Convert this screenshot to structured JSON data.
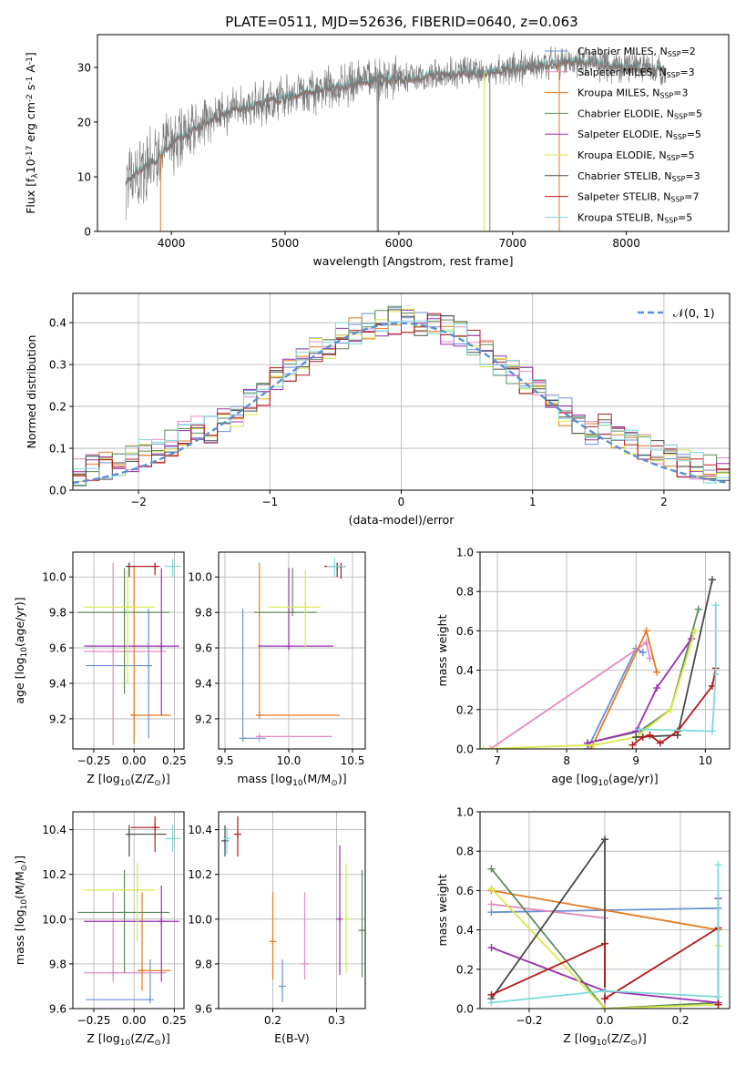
{
  "title": "PLATE=0511, MJD=52636, FIBERID=0640, z=0.063",
  "colors": {
    "Chabrier MILES": "#6b8fd6",
    "Salpeter MILES": "#e38ac0",
    "Kroupa MILES": "#e37b20",
    "Chabrier ELODIE": "#5e8c5e",
    "Salpeter ELODIE": "#9a2fb0",
    "Kroupa ELODIE": "#d9e84a",
    "Chabrier STELIB": "#4a4a4a",
    "Salpeter STELIB": "#b51a1a",
    "Kroupa STELIB": "#7dd9dd",
    "normal": "#5b8fd6",
    "spectrum": "#7a7a7a"
  },
  "chart_data": [
    {
      "id": "spectrum",
      "type": "line",
      "title": "PLATE=0511, MJD=52636, FIBERID=0640, z=0.063",
      "xlabel": "wavelength [Angstrom, rest frame]",
      "ylabel": "Flux [f$_\\lambda$10$^{-17}$ erg cm$^{-2}$ s$^{-1}$ A$^{-1}$]",
      "xlim": [
        3350,
        8900
      ],
      "ylim": [
        0,
        36
      ],
      "xticks": [
        4000,
        5000,
        6000,
        7000,
        8000
      ],
      "yticks": [
        0,
        10,
        20,
        30
      ],
      "legend_position": "top-right",
      "continuum_x": [
        3600,
        3700,
        3800,
        3900,
        4000,
        4100,
        4200,
        4300,
        4500,
        4700,
        4900,
        5100,
        5300,
        5500,
        5700,
        5900,
        6100,
        6300,
        6500,
        6700,
        6900,
        7100,
        7300,
        7500,
        7700,
        7900,
        8100,
        8300,
        8500,
        8700
      ],
      "continuum_y": [
        9,
        11,
        12,
        14,
        16,
        17.5,
        18.5,
        20,
        22,
        23,
        24,
        25,
        26,
        26.5,
        27.5,
        28,
        28,
        28.5,
        29,
        29,
        29.5,
        30,
        30.5,
        31,
        31,
        30,
        30,
        29.5,
        30,
        30
      ],
      "legend": [
        {
          "name": "Chabrier MILES",
          "label": "Chabrier MILES, N",
          "nssp": "=2"
        },
        {
          "name": "Salpeter MILES",
          "label": "Salpeter MILES, N",
          "nssp": "=3"
        },
        {
          "name": "Kroupa MILES",
          "label": "Kroupa MILES, N",
          "nssp": "=3"
        },
        {
          "name": "Chabrier ELODIE",
          "label": "Chabrier ELODIE, N",
          "nssp": "=5"
        },
        {
          "name": "Salpeter ELODIE",
          "label": "Salpeter ELODIE, N",
          "nssp": "=5"
        },
        {
          "name": "Kroupa ELODIE",
          "label": "Kroupa ELODIE, N",
          "nssp": "=5"
        },
        {
          "name": "Chabrier STELIB",
          "label": "Chabrier STELIB, N",
          "nssp": "=3"
        },
        {
          "name": "Salpeter STELIB",
          "label": "Salpeter STELIB, N",
          "nssp": "=7"
        },
        {
          "name": "Kroupa STELIB",
          "label": "Kroupa STELIB, N",
          "nssp": "=5"
        }
      ],
      "legend_subscript": "SSP"
    },
    {
      "id": "residuals",
      "type": "histogram",
      "xlabel": "(data-model)/error",
      "ylabel": "Normed distribution",
      "xlim": [
        -2.5,
        2.5
      ],
      "ylim": [
        0,
        0.47
      ],
      "xticks": [
        -2,
        -1,
        0,
        1,
        2
      ],
      "yticks": [
        0.0,
        0.1,
        0.2,
        0.3,
        0.4
      ],
      "grid": true,
      "legend_position": "top-right",
      "legend": [
        {
          "name": "normal",
          "label": "𝒩(0, 1)"
        }
      ],
      "bin_width": 0.1
    },
    {
      "id": "Z_age",
      "type": "errorbar",
      "xlabel": "Z [log$_{10}$(Z/Z$_\\odot$)]",
      "ylabel": "age  [log$_{10}$(age/yr)]",
      "xlim": [
        -0.38,
        0.31
      ],
      "ylim": [
        9.03,
        10.14
      ],
      "xticks": [
        -0.25,
        0.0,
        0.25
      ],
      "xticklabels": [
        "−0.25",
        "0.00",
        "0.25"
      ],
      "yticks": [
        9.2,
        9.4,
        9.6,
        9.8,
        10.0
      ],
      "grid": true,
      "points": [
        {
          "model": "Chabrier MILES",
          "x": 0.09,
          "y": 9.5,
          "xl": -0.3,
          "xr": 0.1,
          "yl": 9.09,
          "yh": 9.82
        },
        {
          "model": "Salpeter MILES",
          "x": -0.13,
          "y": 9.58,
          "xl": -0.31,
          "xr": 0.2,
          "yl": 9.05,
          "yh": 10.08
        },
        {
          "model": "Kroupa MILES",
          "x": 0.0,
          "y": 9.22,
          "xl": -0.02,
          "xr": 0.23,
          "yl": 9.06,
          "yh": 10.06
        },
        {
          "model": "Chabrier ELODIE",
          "x": -0.06,
          "y": 9.8,
          "xl": -0.35,
          "xr": 0.22,
          "yl": 9.34,
          "yh": 10.05
        },
        {
          "model": "Salpeter ELODIE",
          "x": 0.17,
          "y": 9.61,
          "xl": -0.31,
          "xr": 0.28,
          "yl": 9.22,
          "yh": 10.05
        },
        {
          "model": "Kroupa ELODIE",
          "x": -0.04,
          "y": 9.83,
          "xl": -0.31,
          "xr": 0.13,
          "yl": 9.4,
          "yh": 10.04
        },
        {
          "model": "Chabrier STELIB",
          "x": -0.03,
          "y": 10.06,
          "xl": -0.05,
          "xr": 0.15,
          "yl": 10.0,
          "yh": 10.08
        },
        {
          "model": "Salpeter STELIB",
          "x": 0.13,
          "y": 10.06,
          "xl": -0.04,
          "xr": 0.16,
          "yl": 10.01,
          "yh": 10.07
        },
        {
          "model": "Kroupa STELIB",
          "x": 0.24,
          "y": 10.06,
          "xl": 0.19,
          "xr": 0.29,
          "yl": 10.0,
          "yh": 10.1
        }
      ]
    },
    {
      "id": "mass_age",
      "type": "errorbar",
      "xlabel": "mass [log$_{10}$(M/M$_\\odot$)]",
      "ylabel": "",
      "xlim": [
        9.45,
        10.6
      ],
      "ylim": [
        9.03,
        10.14
      ],
      "xticks": [
        9.5,
        10.0,
        10.5
      ],
      "yticks": [
        9.2,
        9.4,
        9.6,
        9.8,
        10.0
      ],
      "grid": true,
      "points": [
        {
          "model": "Chabrier MILES",
          "x": 9.64,
          "y": 9.09,
          "xl": 9.64,
          "xr": 9.82,
          "yl": 9.09,
          "yh": 9.82
        },
        {
          "model": "Salpeter MILES",
          "x": 9.77,
          "y": 9.1,
          "xl": 9.77,
          "xr": 10.34,
          "yl": 9.07,
          "yh": 9.1
        },
        {
          "model": "Kroupa MILES",
          "x": 9.77,
          "y": 9.22,
          "xl": 9.77,
          "xr": 10.4,
          "yl": 9.22,
          "yh": 10.08
        },
        {
          "model": "Chabrier ELODIE",
          "x": 10.03,
          "y": 9.8,
          "xl": 9.73,
          "xr": 10.22,
          "yl": 9.8,
          "yh": 10.05
        },
        {
          "model": "Salpeter ELODIE",
          "x": 10.0,
          "y": 9.61,
          "xl": 9.76,
          "xr": 10.35,
          "yl": 9.6,
          "yh": 10.05
        },
        {
          "model": "Kroupa ELODIE",
          "x": 10.13,
          "y": 9.83,
          "xl": 9.84,
          "xr": 10.25,
          "yl": 9.6,
          "yh": 10.04
        },
        {
          "model": "Chabrier STELIB",
          "x": 10.38,
          "y": 10.06,
          "xl": 10.28,
          "xr": 10.45,
          "yl": 10.0,
          "yh": 10.08
        },
        {
          "model": "Salpeter STELIB",
          "x": 10.41,
          "y": 10.06,
          "xl": 10.28,
          "xr": 10.45,
          "yl": 9.99,
          "yh": 10.07
        },
        {
          "model": "Kroupa STELIB",
          "x": 10.36,
          "y": 10.06,
          "xl": 10.3,
          "xr": 10.45,
          "yl": 10.0,
          "yh": 10.11
        }
      ]
    },
    {
      "id": "age_weight",
      "type": "line",
      "xlabel": "age  [log$_{10}$(age/yr)]",
      "ylabel": "mass weight",
      "xlim": [
        6.75,
        10.35
      ],
      "ylim": [
        0.0,
        1.0
      ],
      "xticks": [
        7,
        8,
        9,
        10
      ],
      "yticks": [
        0.0,
        0.2,
        0.4,
        0.6,
        0.8,
        1.0
      ],
      "grid": true,
      "series": [
        {
          "name": "Chabrier MILES",
          "x": [
            8.3,
            9.0,
            9.1
          ],
          "y": [
            0.0,
            0.51,
            0.49
          ]
        },
        {
          "name": "Salpeter MILES",
          "x": [
            6.9,
            9.15,
            9.2
          ],
          "y": [
            0.0,
            0.54,
            0.46
          ]
        },
        {
          "name": "Kroupa MILES",
          "x": [
            8.35,
            9.15,
            9.3
          ],
          "y": [
            0.0,
            0.6,
            0.39
          ]
        },
        {
          "name": "Chabrier ELODIE",
          "x": [
            8.3,
            9.05,
            9.5,
            9.9
          ],
          "y": [
            0.03,
            0.09,
            0.2,
            0.71
          ]
        },
        {
          "name": "Salpeter ELODIE",
          "x": [
            8.3,
            9.0,
            9.3,
            9.8
          ],
          "y": [
            0.03,
            0.09,
            0.31,
            0.56
          ]
        },
        {
          "name": "Kroupa ELODIE",
          "x": [
            6.8,
            8.4,
            9.0,
            9.5,
            9.85
          ],
          "y": [
            0.0,
            0.02,
            0.06,
            0.2,
            0.6
          ]
        },
        {
          "name": "Chabrier STELIB",
          "x": [
            9.0,
            9.6,
            10.1
          ],
          "y": [
            0.06,
            0.07,
            0.86
          ]
        },
        {
          "name": "Salpeter STELIB",
          "x": [
            8.95,
            9.1,
            9.2,
            9.35,
            9.6,
            10.1,
            10.15
          ],
          "y": [
            0.02,
            0.06,
            0.07,
            0.03,
            0.09,
            0.32,
            0.41
          ]
        },
        {
          "name": "Kroupa STELIB",
          "x": [
            9.05,
            10.1,
            10.15,
            10.15
          ],
          "y": [
            0.1,
            0.09,
            0.38,
            0.73
          ]
        }
      ]
    },
    {
      "id": "Z_mass",
      "type": "errorbar",
      "xlabel": "Z [log$_{10}$(Z/Z$_\\odot$)]",
      "ylabel": "mass [log$_{10}$(M/M$_\\odot$)]",
      "xlim": [
        -0.38,
        0.31
      ],
      "ylim": [
        9.6,
        10.48
      ],
      "xticks": [
        -0.25,
        0.0,
        0.25
      ],
      "xticklabels": [
        "−0.25",
        "0.00",
        "0.25"
      ],
      "yticks": [
        9.6,
        9.8,
        10.0,
        10.2,
        10.4
      ],
      "grid": true,
      "points": [
        {
          "model": "Chabrier MILES",
          "x": 0.1,
          "y": 9.64,
          "xl": -0.3,
          "xr": 0.1,
          "yl": 9.64,
          "yh": 9.82
        },
        {
          "model": "Salpeter MILES",
          "x": -0.13,
          "y": 9.76,
          "xl": -0.31,
          "xr": 0.2,
          "yl": 9.72,
          "yh": 10.12
        },
        {
          "model": "Kroupa MILES",
          "x": 0.05,
          "y": 9.77,
          "xl": 0.02,
          "xr": 0.23,
          "yl": 9.68,
          "yh": 10.12
        },
        {
          "model": "Chabrier ELODIE",
          "x": -0.06,
          "y": 10.03,
          "xl": -0.35,
          "xr": 0.22,
          "yl": 9.76,
          "yh": 10.22
        },
        {
          "model": "Salpeter ELODIE",
          "x": 0.17,
          "y": 9.99,
          "xl": -0.31,
          "xr": 0.28,
          "yl": 9.72,
          "yh": 10.15
        },
        {
          "model": "Kroupa ELODIE",
          "x": 0.02,
          "y": 10.13,
          "xl": -0.31,
          "xr": 0.13,
          "yl": 9.9,
          "yh": 10.25
        },
        {
          "model": "Chabrier STELIB",
          "x": -0.03,
          "y": 10.38,
          "xl": -0.05,
          "xr": 0.2,
          "yl": 10.28,
          "yh": 10.42
        },
        {
          "model": "Salpeter STELIB",
          "x": 0.13,
          "y": 10.41,
          "xl": -0.02,
          "xr": 0.16,
          "yl": 10.3,
          "yh": 10.46
        },
        {
          "model": "Kroupa STELIB",
          "x": 0.24,
          "y": 10.36,
          "xl": 0.19,
          "xr": 0.29,
          "yl": 10.3,
          "yh": 10.42
        }
      ]
    },
    {
      "id": "ebv_mass",
      "type": "errorbar",
      "xlabel": "E(B-V)",
      "ylabel": "",
      "xlim": [
        0.115,
        0.345
      ],
      "ylim": [
        9.6,
        10.48
      ],
      "xticks": [
        0.2,
        0.3
      ],
      "yticks": [
        9.6,
        9.8,
        10.0,
        10.2,
        10.4
      ],
      "grid": true,
      "points": [
        {
          "model": "Chabrier MILES",
          "x": 0.215,
          "y": 9.7,
          "yl": 9.63,
          "yh": 9.82
        },
        {
          "model": "Salpeter MILES",
          "x": 0.25,
          "y": 9.8,
          "yl": 9.73,
          "yh": 10.12
        },
        {
          "model": "Kroupa MILES",
          "x": 0.2,
          "y": 9.9,
          "yl": 9.73,
          "yh": 10.12
        },
        {
          "model": "Chabrier ELODIE",
          "x": 0.34,
          "y": 9.95,
          "yl": 9.74,
          "yh": 10.22
        },
        {
          "model": "Salpeter ELODIE",
          "x": 0.305,
          "y": 10.0,
          "yl": 9.75,
          "yh": 10.33
        },
        {
          "model": "Kroupa ELODIE",
          "x": 0.315,
          "y": 10.0,
          "yl": 9.76,
          "yh": 10.25
        },
        {
          "model": "Chabrier STELIB",
          "x": 0.125,
          "y": 10.35,
          "yl": 10.28,
          "yh": 10.42
        },
        {
          "model": "Salpeter STELIB",
          "x": 0.145,
          "y": 10.38,
          "yl": 10.28,
          "yh": 10.46
        },
        {
          "model": "Kroupa STELIB",
          "x": 0.128,
          "y": 10.36,
          "yl": 10.29,
          "yh": 10.41
        }
      ]
    },
    {
      "id": "Z_weight",
      "type": "line",
      "xlabel": "Z [log$_{10}$(Z/Z$_\\odot$)]",
      "ylabel": "mass weight",
      "xlim": [
        -0.33,
        0.33
      ],
      "ylim": [
        0.0,
        1.0
      ],
      "xticks": [
        -0.2,
        0.0,
        0.2
      ],
      "xticklabels": [
        "−0.2",
        "0.0",
        "0.2"
      ],
      "yticks": [
        0.0,
        0.2,
        0.4,
        0.6,
        0.8,
        1.0
      ],
      "grid": true,
      "series": [
        {
          "name": "Chabrier MILES",
          "x": [
            -0.3,
            0.3
          ],
          "y": [
            0.49,
            0.51
          ]
        },
        {
          "name": "Salpeter MILES",
          "x": [
            -0.3,
            0.0,
            0.0
          ],
          "y": [
            0.53,
            0.46,
            0.0
          ]
        },
        {
          "name": "Kroupa MILES",
          "x": [
            -0.3,
            0.3
          ],
          "y": [
            0.6,
            0.4
          ]
        },
        {
          "name": "Chabrier ELODIE",
          "x": [
            -0.3,
            0.0,
            0.3,
            0.3
          ],
          "y": [
            0.71,
            0.0,
            0.03,
            0.02
          ]
        },
        {
          "name": "Salpeter ELODIE",
          "x": [
            -0.3,
            0.0,
            0.3,
            0.3
          ],
          "y": [
            0.31,
            0.09,
            0.03,
            0.56
          ]
        },
        {
          "name": "Kroupa ELODIE",
          "x": [
            -0.3,
            0.0,
            0.3,
            0.3
          ],
          "y": [
            0.61,
            0.0,
            0.02,
            0.32
          ]
        },
        {
          "name": "Chabrier STELIB",
          "x": [
            -0.3,
            0.0,
            0.0
          ],
          "y": [
            0.05,
            0.86,
            0.05
          ]
        },
        {
          "name": "Salpeter STELIB",
          "x": [
            -0.3,
            0.0,
            0.0,
            0.3,
            0.3
          ],
          "y": [
            0.07,
            0.33,
            0.05,
            0.41,
            0.02
          ]
        },
        {
          "name": "Kroupa STELIB",
          "x": [
            -0.3,
            0.0,
            0.3,
            0.3
          ],
          "y": [
            0.03,
            0.09,
            0.06,
            0.73
          ]
        }
      ]
    }
  ]
}
